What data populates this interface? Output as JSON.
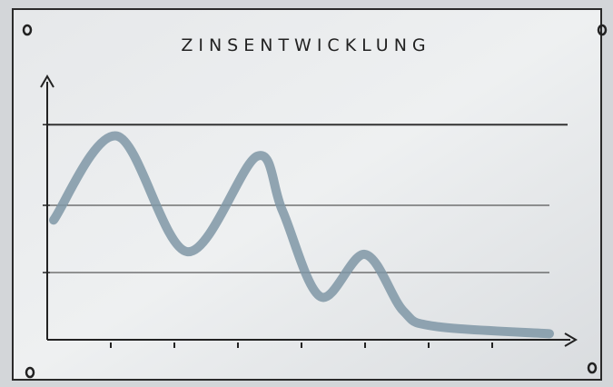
{
  "chart_data": {
    "type": "line",
    "title": "ZINSENTWICKLUNG",
    "x": [
      0.1,
      1.1,
      2.2,
      3.3,
      3.7,
      4.3,
      5.0,
      5.6,
      6.1,
      7.9
    ],
    "series": [
      {
        "color": "#7f97a6",
        "values": [
          1.78,
          3.03,
          1.31,
          2.73,
          1.92,
          0.64,
          1.27,
          0.43,
          0.2,
          0.09
        ]
      }
    ],
    "xlim": [
      0,
      8.2
    ],
    "xticks": [
      1,
      2,
      3,
      4,
      5,
      6,
      7
    ],
    "ylim": [
      0,
      3.9
    ],
    "yticks": [
      1,
      2,
      3.2
    ],
    "grid": true
  }
}
